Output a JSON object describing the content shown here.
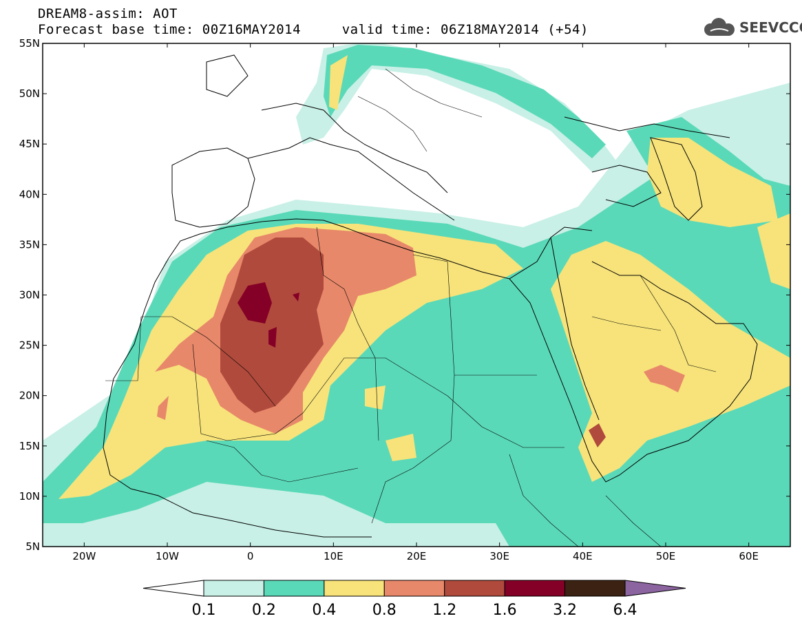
{
  "title": {
    "line1": "DREAM8-assim: AOT",
    "line2": "Forecast base time: 00Z16MAY2014     valid time: 06Z18MAY2014 (+54)"
  },
  "logo": {
    "text": "SEEVCCC",
    "icon": "cloud-icon"
  },
  "map": {
    "lon_range": [
      -25,
      65
    ],
    "lat_range": [
      5,
      55
    ],
    "lat_ticks": [
      "55N",
      "50N",
      "45N",
      "40N",
      "35N",
      "30N",
      "25N",
      "20N",
      "15N",
      "10N",
      "5N"
    ],
    "lon_ticks": [
      "20W",
      "10W",
      "0",
      "10E",
      "20E",
      "30E",
      "40E",
      "50E",
      "60E"
    ]
  },
  "colorbar": {
    "colors": [
      "#ffffff",
      "#c8f0e6",
      "#5ad9b8",
      "#f7e37a",
      "#e8886a",
      "#b04a3c",
      "#850026",
      "#3c2212",
      "#8c64a0"
    ],
    "labels": [
      "0.1",
      "0.2",
      "0.4",
      "0.8",
      "1.2",
      "1.6",
      "3.2",
      "6.4"
    ]
  }
}
